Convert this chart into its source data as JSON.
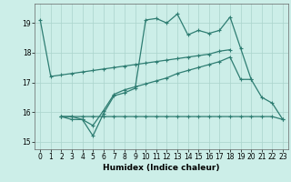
{
  "xlabel": "Humidex (Indice chaleur)",
  "xlim": [
    -0.5,
    23.5
  ],
  "ylim": [
    14.75,
    19.65
  ],
  "yticks": [
    15,
    16,
    17,
    18,
    19
  ],
  "xticks": [
    0,
    1,
    2,
    3,
    4,
    5,
    6,
    7,
    8,
    9,
    10,
    11,
    12,
    13,
    14,
    15,
    16,
    17,
    18,
    19,
    20,
    21,
    22,
    23
  ],
  "bg_color": "#cceee8",
  "line_color": "#2e7d72",
  "grid_color": "#aad4cc",
  "line1": {
    "x": [
      0,
      1,
      2,
      3,
      4,
      5,
      6,
      7,
      8,
      9,
      10,
      11,
      12,
      13,
      14,
      15,
      16,
      17,
      18
    ],
    "y": [
      19.1,
      17.2,
      17.25,
      17.3,
      17.35,
      17.4,
      17.45,
      17.5,
      17.55,
      17.6,
      17.65,
      17.7,
      17.75,
      17.8,
      17.85,
      17.9,
      17.95,
      18.05,
      18.1
    ]
  },
  "line2": {
    "x": [
      2,
      3,
      4,
      5,
      6,
      7,
      8,
      9,
      10,
      11,
      12,
      13,
      14,
      15,
      16,
      17,
      18,
      19,
      20,
      21,
      22,
      23
    ],
    "y": [
      15.85,
      15.85,
      15.75,
      15.2,
      15.95,
      16.55,
      16.65,
      16.8,
      19.1,
      19.15,
      19.0,
      19.3,
      18.6,
      18.75,
      18.65,
      18.75,
      19.2,
      18.15,
      17.1,
      16.5,
      16.3,
      15.75
    ]
  },
  "line3": {
    "x": [
      2,
      3,
      4,
      5,
      6,
      7,
      8,
      9,
      10,
      11,
      12,
      13,
      14,
      15,
      16,
      17,
      18,
      19,
      20
    ],
    "y": [
      15.85,
      15.75,
      15.75,
      15.55,
      16.05,
      16.6,
      16.75,
      16.85,
      16.95,
      17.05,
      17.15,
      17.3,
      17.4,
      17.5,
      17.6,
      17.7,
      17.85,
      17.1,
      17.1
    ]
  },
  "line4": {
    "x": [
      2,
      3,
      4,
      5,
      6,
      7,
      8,
      9,
      10,
      11,
      12,
      13,
      14,
      15,
      16,
      17,
      18,
      19,
      20,
      21,
      22,
      23
    ],
    "y": [
      15.85,
      15.85,
      15.85,
      15.85,
      15.85,
      15.85,
      15.85,
      15.85,
      15.85,
      15.85,
      15.85,
      15.85,
      15.85,
      15.85,
      15.85,
      15.85,
      15.85,
      15.85,
      15.85,
      15.85,
      15.85,
      15.75
    ]
  }
}
